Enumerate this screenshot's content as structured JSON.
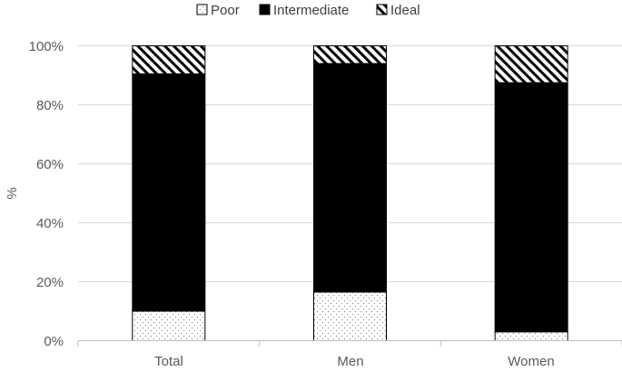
{
  "chart_data": {
    "type": "bar",
    "stacked": true,
    "percent": true,
    "categories": [
      "Total",
      "Men",
      "Women"
    ],
    "series": [
      {
        "name": "Poor",
        "values": [
          10,
          16.5,
          3
        ],
        "pattern": "dots"
      },
      {
        "name": "Intermediate",
        "values": [
          80.5,
          77.5,
          84.5
        ],
        "pattern": "solid"
      },
      {
        "name": "Ideal",
        "values": [
          9.5,
          6,
          12.5
        ],
        "pattern": "diagonal"
      }
    ],
    "ylabel": "%",
    "ylim": [
      0,
      100
    ],
    "yticks": [
      "0%",
      "20%",
      "40%",
      "60%",
      "80%",
      "100%"
    ],
    "grid": true,
    "legend": "top",
    "colors": {
      "bar_stroke": "#000000",
      "grid": "#d9d9d9",
      "axis": "#bfbfbf",
      "text": "#595959"
    }
  }
}
